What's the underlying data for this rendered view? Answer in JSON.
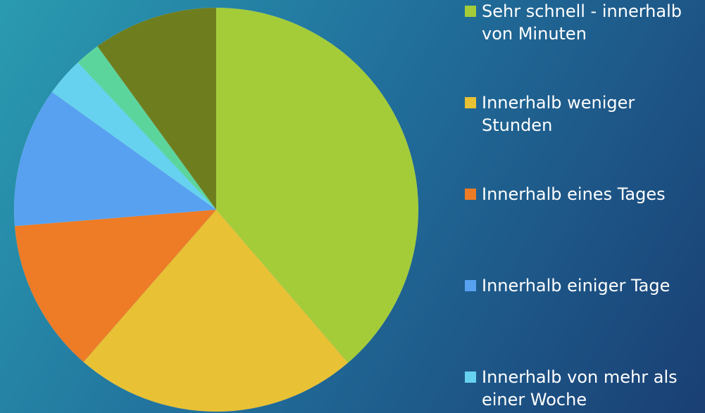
{
  "chart_data": {
    "type": "pie",
    "categories": [
      "Sehr schnell - innerhalb von Minuten",
      "Innerhalb weniger Stunden",
      "Innerhalb eines Tages",
      "Innerhalb einiger Tage",
      "Innerhalb von mehr als einer Woche",
      null,
      null
    ],
    "values": [
      38.7,
      22.7,
      12.3,
      11.2,
      3.1,
      2,
      10
    ],
    "colors": [
      "#a4cc38",
      "#e8c134",
      "#ee7b25",
      "#58a1f1",
      "#66d2ef",
      "#5cd59d",
      "#6e7e1e"
    ],
    "legend": "right"
  }
}
